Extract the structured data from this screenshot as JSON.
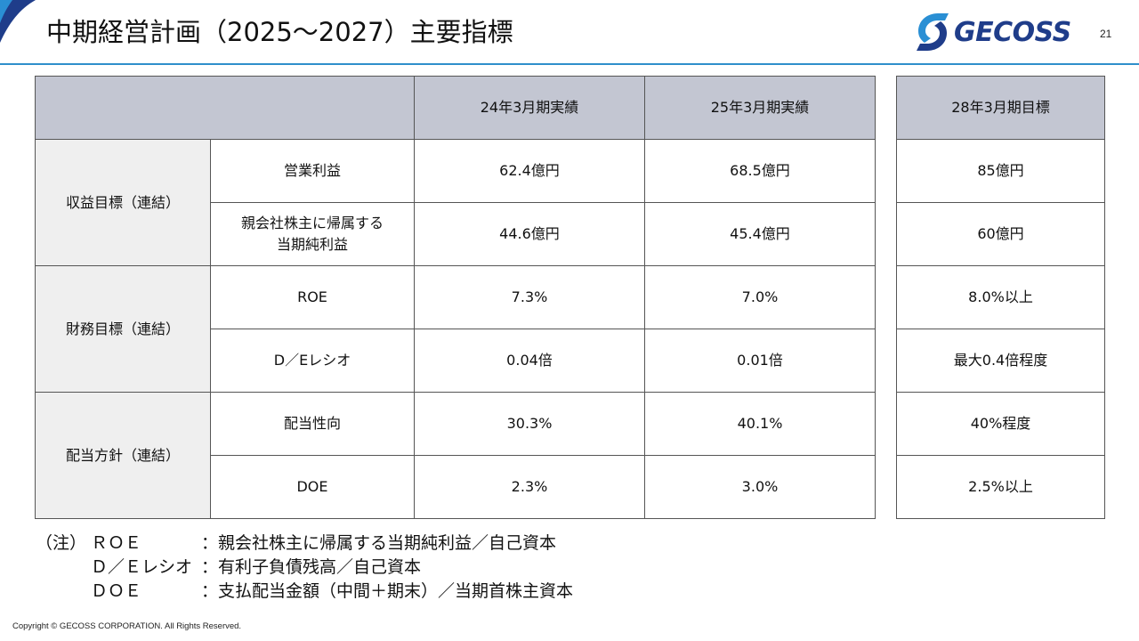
{
  "header": {
    "title": "中期経営計画（2025～2027）主要指標",
    "page_number": "21",
    "logo_text": "GECOSS"
  },
  "table": {
    "columns": [
      "24年3月期実績",
      "25年3月期実績"
    ],
    "target_column": "28年3月期目標",
    "groups": [
      {
        "label": "収益目標（連結）",
        "rows": [
          {
            "metric": [
              "営業利益"
            ],
            "values": [
              "62.4億円",
              "68.5億円"
            ],
            "target": "85億円"
          },
          {
            "metric": [
              "親会社株主に帰属する",
              "当期純利益"
            ],
            "values": [
              "44.6億円",
              "45.4億円"
            ],
            "target": "60億円"
          }
        ]
      },
      {
        "label": "財務目標（連結）",
        "rows": [
          {
            "metric": [
              "ROE"
            ],
            "values": [
              "7.3%",
              "7.0%"
            ],
            "target": "8.0%以上"
          },
          {
            "metric": [
              "D／Eレシオ"
            ],
            "values": [
              "0.04倍",
              "0.01倍"
            ],
            "target": "最大0.4倍程度"
          }
        ]
      },
      {
        "label": "配当方針（連結）",
        "rows": [
          {
            "metric": [
              "配当性向"
            ],
            "values": [
              "30.3%",
              "40.1%"
            ],
            "target": "40%程度"
          },
          {
            "metric": [
              "DOE"
            ],
            "values": [
              "2.3%",
              "3.0%"
            ],
            "target": "2.5%以上"
          }
        ]
      }
    ]
  },
  "notes": {
    "prefix": "（注）",
    "items": [
      {
        "term": "ＲＯＥ",
        "definition": "：親会社株主に帰属する当期純利益／自己資本"
      },
      {
        "term": "Ｄ／Ｅレシオ",
        "definition": "：有利子負債残高／自己資本"
      },
      {
        "term": "ＤＯＥ",
        "definition": "：支払配当金額（中間＋期末）／当期首株主資本"
      }
    ]
  },
  "footer": {
    "copyright": "Copyright © GECOSS CORPORATION. All Rights Reserved."
  },
  "colors": {
    "accent": "#2f8fcb",
    "header_fill": "#c3c6d2",
    "rowhead_fill": "#efefef",
    "logo_navy": "#1f3d8a",
    "logo_blue": "#2a8fd4"
  }
}
